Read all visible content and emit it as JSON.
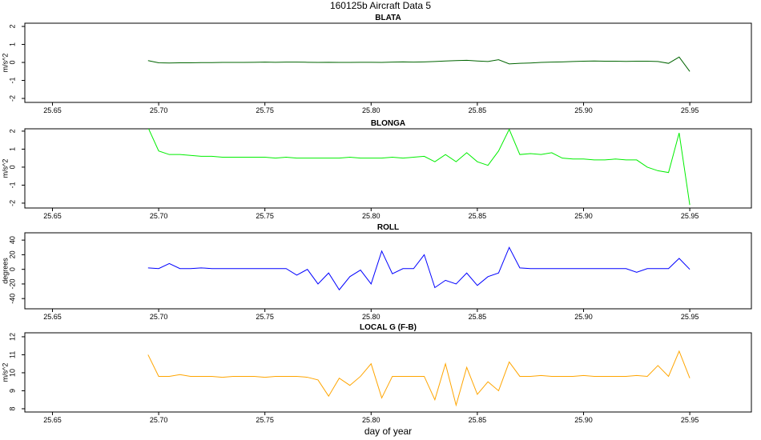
{
  "title": "160125b   Aircraft Data 5",
  "chart_data": [
    {
      "type": "line",
      "title": "BLATA",
      "ylabel": "m/s^2",
      "x": [
        25.695,
        25.7,
        25.705,
        25.71,
        25.715,
        25.72,
        25.725,
        25.73,
        25.735,
        25.74,
        25.745,
        25.75,
        25.755,
        25.76,
        25.765,
        25.77,
        25.775,
        25.78,
        25.785,
        25.79,
        25.795,
        25.8,
        25.805,
        25.81,
        25.815,
        25.82,
        25.825,
        25.83,
        25.835,
        25.84,
        25.845,
        25.85,
        25.855,
        25.86,
        25.865,
        25.87,
        25.875,
        25.88,
        25.885,
        25.89,
        25.895,
        25.9,
        25.905,
        25.91,
        25.915,
        25.92,
        25.925,
        25.93,
        25.935,
        25.94,
        25.945,
        25.95
      ],
      "series": [
        {
          "color": "#006400",
          "values": [
            0.1,
            -0.02,
            -0.03,
            -0.02,
            -0.02,
            -0.01,
            -0.01,
            0,
            0,
            0,
            0.01,
            0.02,
            0.01,
            0.02,
            0.02,
            0.01,
            0,
            0.01,
            0,
            0,
            0.01,
            0.01,
            0,
            0.02,
            0.03,
            0.02,
            0.03,
            0.05,
            0.08,
            0.1,
            0.12,
            0.08,
            0.05,
            0.15,
            -0.08,
            -0.05,
            -0.03,
            0,
            0.02,
            0.03,
            0.05,
            0.07,
            0.08,
            0.07,
            0.07,
            0.06,
            0.07,
            0.07,
            0.05,
            -0.05,
            0.3,
            -0.5
          ]
        }
      ],
      "xlim": [
        25.637,
        25.979
      ],
      "ylim": [
        -2.22,
        2.18
      ],
      "xticks": [
        25.65,
        {
          "value": 25.7,
          "label": "25.70"
        },
        25.75,
        {
          "value": 25.8,
          "label": "25.80"
        },
        25.85,
        {
          "value": 25.9,
          "label": "25.90"
        },
        25.95
      ],
      "yticks": [
        -2,
        -1,
        0,
        1,
        2
      ]
    },
    {
      "type": "line",
      "title": "BLONGA",
      "ylabel": "m/s^2",
      "x": [
        25.695,
        25.7,
        25.705,
        25.71,
        25.715,
        25.72,
        25.725,
        25.73,
        25.735,
        25.74,
        25.745,
        25.75,
        25.755,
        25.76,
        25.765,
        25.77,
        25.775,
        25.78,
        25.785,
        25.79,
        25.795,
        25.8,
        25.805,
        25.81,
        25.815,
        25.82,
        25.825,
        25.83,
        25.835,
        25.84,
        25.845,
        25.85,
        25.855,
        25.86,
        25.865,
        25.87,
        25.875,
        25.88,
        25.885,
        25.89,
        25.895,
        25.9,
        25.905,
        25.91,
        25.915,
        25.92,
        25.925,
        25.93,
        25.935,
        25.94,
        25.945,
        25.95
      ],
      "series": [
        {
          "color": "#00ee00",
          "values": [
            2.2,
            0.9,
            0.7,
            0.7,
            0.65,
            0.6,
            0.6,
            0.55,
            0.55,
            0.55,
            0.55,
            0.55,
            0.5,
            0.55,
            0.5,
            0.5,
            0.5,
            0.5,
            0.5,
            0.55,
            0.5,
            0.5,
            0.5,
            0.55,
            0.5,
            0.55,
            0.6,
            0.3,
            0.7,
            0.3,
            0.8,
            0.3,
            0.1,
            0.9,
            2.1,
            0.7,
            0.75,
            0.7,
            0.8,
            0.5,
            0.45,
            0.45,
            0.4,
            0.4,
            0.45,
            0.4,
            0.4,
            0.0,
            -0.2,
            -0.3,
            1.9,
            -2.1
          ]
        }
      ],
      "xlim": [
        25.637,
        25.979
      ],
      "ylim": [
        -2.27,
        2.13
      ],
      "xticks": [
        25.65,
        {
          "value": 25.7,
          "label": "25.70"
        },
        25.75,
        {
          "value": 25.8,
          "label": "25.80"
        },
        25.85,
        {
          "value": 25.9,
          "label": "25.90"
        },
        25.95
      ],
      "yticks": [
        -2,
        -1,
        0,
        1,
        2
      ]
    },
    {
      "type": "line",
      "title": "ROLL",
      "ylabel": "degrees",
      "x": [
        25.695,
        25.7,
        25.705,
        25.71,
        25.715,
        25.72,
        25.725,
        25.73,
        25.735,
        25.74,
        25.745,
        25.75,
        25.755,
        25.76,
        25.765,
        25.77,
        25.775,
        25.78,
        25.785,
        25.79,
        25.795,
        25.8,
        25.805,
        25.81,
        25.815,
        25.82,
        25.825,
        25.83,
        25.835,
        25.84,
        25.845,
        25.85,
        25.855,
        25.86,
        25.865,
        25.87,
        25.875,
        25.88,
        25.885,
        25.89,
        25.895,
        25.9,
        25.905,
        25.91,
        25.915,
        25.92,
        25.925,
        25.93,
        25.935,
        25.94,
        25.945,
        25.95
      ],
      "series": [
        {
          "color": "#0000ff",
          "values": [
            2,
            1,
            8,
            1,
            1,
            2,
            1,
            1,
            1,
            1,
            1,
            1,
            1,
            1,
            -8,
            0,
            -20,
            -5,
            -28,
            -10,
            -1,
            -20,
            25,
            -6,
            1,
            1,
            20,
            -25,
            -15,
            -20,
            -5,
            -22,
            -10,
            -5,
            30,
            2,
            1,
            1,
            1,
            1,
            1,
            1,
            1,
            1,
            1,
            1,
            -4,
            1,
            1,
            1,
            15,
            0
          ]
        }
      ],
      "xlim": [
        25.637,
        25.979
      ],
      "ylim": [
        -54,
        50
      ],
      "xticks": [
        25.65,
        {
          "value": 25.7,
          "label": "25.70"
        },
        25.75,
        {
          "value": 25.8,
          "label": "25.80"
        },
        25.85,
        {
          "value": 25.9,
          "label": "25.90"
        },
        25.95
      ],
      "yticks": [
        -40,
        -20,
        0,
        20,
        40
      ]
    },
    {
      "type": "line",
      "title": "LOCAL G (F-B)",
      "ylabel": "m/s^2",
      "xlabel": "day of year",
      "x": [
        25.695,
        25.7,
        25.705,
        25.71,
        25.715,
        25.72,
        25.725,
        25.73,
        25.735,
        25.74,
        25.745,
        25.75,
        25.755,
        25.76,
        25.765,
        25.77,
        25.775,
        25.78,
        25.785,
        25.79,
        25.795,
        25.8,
        25.805,
        25.81,
        25.815,
        25.82,
        25.825,
        25.83,
        25.835,
        25.84,
        25.845,
        25.85,
        25.855,
        25.86,
        25.865,
        25.87,
        25.875,
        25.88,
        25.885,
        25.89,
        25.895,
        25.9,
        25.905,
        25.91,
        25.915,
        25.92,
        25.925,
        25.93,
        25.935,
        25.94,
        25.945,
        25.95
      ],
      "series": [
        {
          "color": "#ffa500",
          "values": [
            11,
            9.8,
            9.8,
            9.9,
            9.8,
            9.8,
            9.8,
            9.75,
            9.8,
            9.8,
            9.8,
            9.75,
            9.8,
            9.8,
            9.8,
            9.75,
            9.6,
            8.7,
            9.7,
            9.3,
            9.8,
            10.5,
            8.6,
            9.8,
            9.8,
            9.8,
            9.8,
            8.5,
            10.5,
            8.2,
            10.3,
            8.8,
            9.5,
            9.0,
            10.6,
            9.8,
            9.8,
            9.85,
            9.8,
            9.8,
            9.8,
            9.85,
            9.8,
            9.8,
            9.8,
            9.8,
            9.85,
            9.8,
            10.4,
            9.8,
            11.2,
            9.7
          ]
        }
      ],
      "xlim": [
        25.637,
        25.979
      ],
      "ylim": [
        7.82,
        12.22
      ],
      "xticks": [
        25.65,
        {
          "value": 25.7,
          "label": "25.70"
        },
        25.75,
        {
          "value": 25.8,
          "label": "25.80"
        },
        25.85,
        {
          "value": 25.9,
          "label": "25.90"
        },
        25.95
      ],
      "yticks": [
        8,
        9,
        10,
        11,
        12
      ]
    }
  ]
}
